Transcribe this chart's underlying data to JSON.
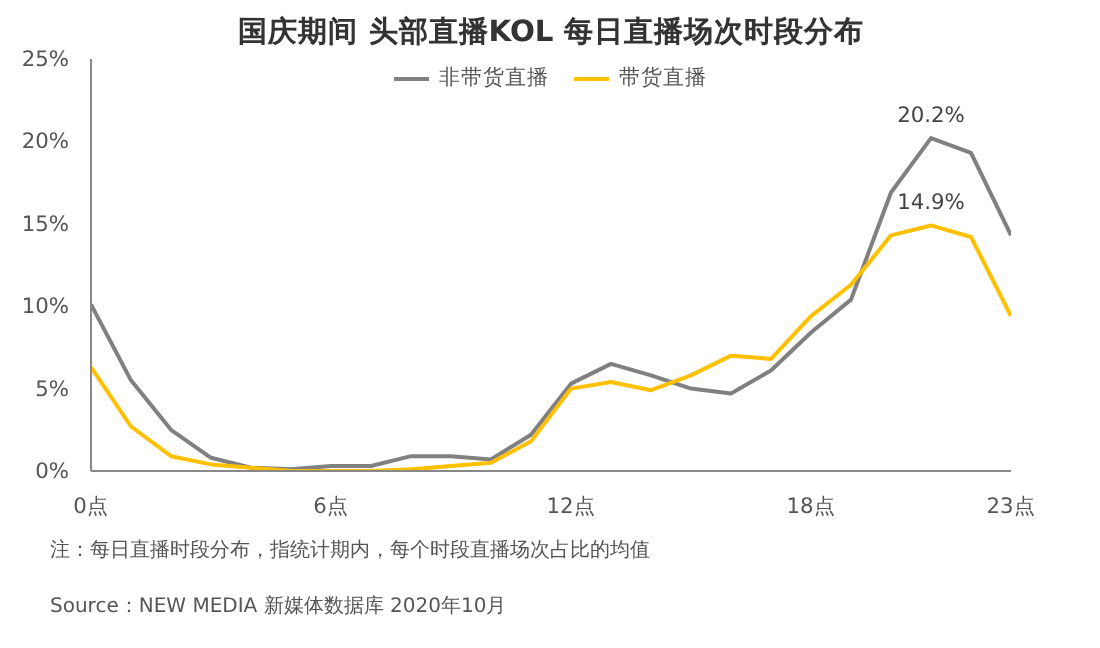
{
  "chart_data": {
    "type": "line",
    "title": "国庆期间 头部直播KOL 每日直播场次时段分布",
    "x": [
      0,
      1,
      2,
      3,
      4,
      5,
      6,
      7,
      8,
      9,
      10,
      11,
      12,
      13,
      14,
      15,
      16,
      17,
      18,
      19,
      20,
      21,
      22,
      23
    ],
    "series": [
      {
        "name": "非带货直播",
        "color": "#808080",
        "values": [
          10.1,
          5.5,
          2.5,
          0.8,
          0.2,
          0.1,
          0.3,
          0.3,
          0.9,
          0.9,
          0.7,
          2.2,
          5.3,
          6.5,
          5.8,
          5.0,
          4.7,
          6.1,
          8.4,
          10.4,
          16.9,
          20.2,
          19.3,
          14.3
        ]
      },
      {
        "name": "带货直播",
        "color": "#ffc000",
        "values": [
          6.3,
          2.7,
          0.9,
          0.4,
          0.2,
          0.0,
          0.0,
          0.0,
          0.1,
          0.3,
          0.5,
          1.8,
          5.0,
          5.4,
          4.9,
          5.8,
          7.0,
          6.8,
          9.4,
          11.3,
          14.3,
          14.9,
          14.2,
          9.4
        ]
      }
    ],
    "xlim": [
      0,
      23
    ],
    "xticks": [
      {
        "value": 0,
        "label": "0点"
      },
      {
        "value": 6,
        "label": "6点"
      },
      {
        "value": 12,
        "label": "12点"
      },
      {
        "value": 18,
        "label": "18点"
      },
      {
        "value": 23,
        "label": "23点"
      }
    ],
    "ylim": [
      0,
      25
    ],
    "yticks": [
      {
        "value": 0,
        "label": "0%"
      },
      {
        "value": 5,
        "label": "5%"
      },
      {
        "value": 10,
        "label": "10%"
      },
      {
        "value": 15,
        "label": "15%"
      },
      {
        "value": 20,
        "label": "20%"
      },
      {
        "value": 25,
        "label": "25%"
      }
    ],
    "annotations": [
      {
        "text": "20.2%",
        "x": 21,
        "y": 20.2
      },
      {
        "text": "14.9%",
        "x": 21,
        "y": 14.9
      },
      "注：每日直播时段分布，指统计期内，每个时段直播场次占比的均值",
      "Source：NEW MEDIA 新媒体数据库 2020年10月"
    ],
    "grid": false,
    "legend": "top",
    "marker": "none",
    "line_style": "solid"
  }
}
